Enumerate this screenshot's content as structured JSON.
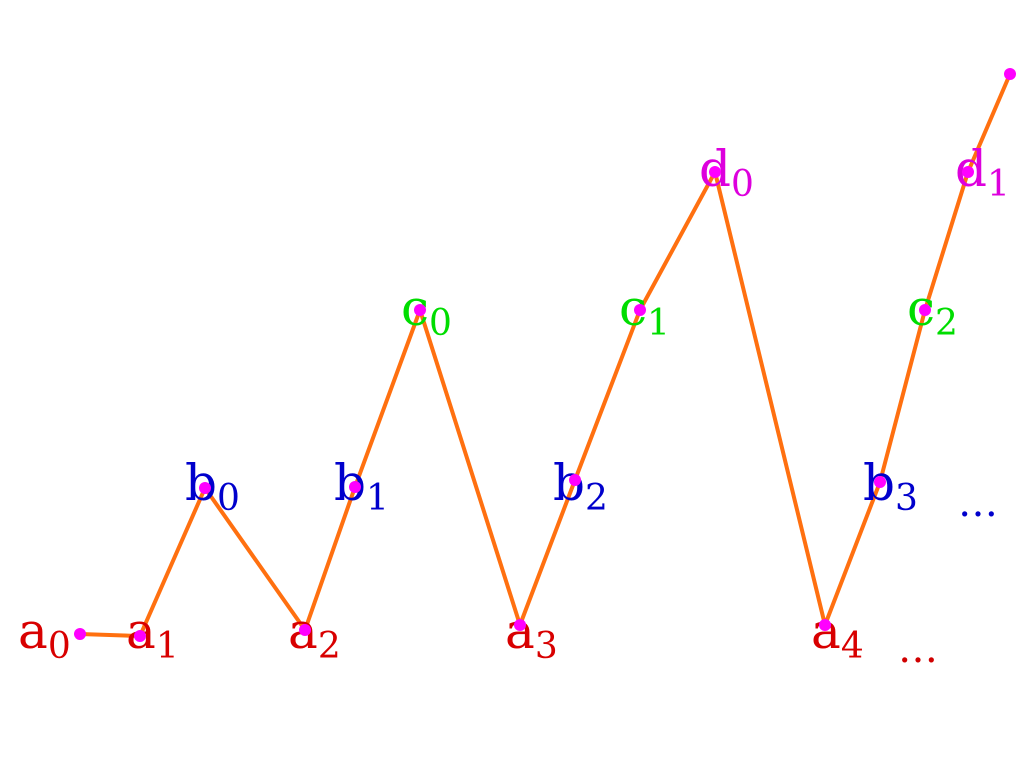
{
  "nodes": [
    {
      "letter": "a",
      "index": "0"
    },
    {
      "letter": "a",
      "index": "1"
    },
    {
      "letter": "b",
      "index": "0"
    },
    {
      "letter": "a",
      "index": "2"
    },
    {
      "letter": "b",
      "index": "1"
    },
    {
      "letter": "c",
      "index": "0"
    },
    {
      "letter": "a",
      "index": "3"
    },
    {
      "letter": "b",
      "index": "2"
    },
    {
      "letter": "c",
      "index": "1"
    },
    {
      "letter": "d",
      "index": "0"
    },
    {
      "letter": "a",
      "index": "4"
    },
    {
      "letter": "b",
      "index": "3"
    },
    {
      "letter": "c",
      "index": "2"
    },
    {
      "letter": "d",
      "index": "1"
    }
  ],
  "ellipses": [
    "…",
    "…"
  ]
}
